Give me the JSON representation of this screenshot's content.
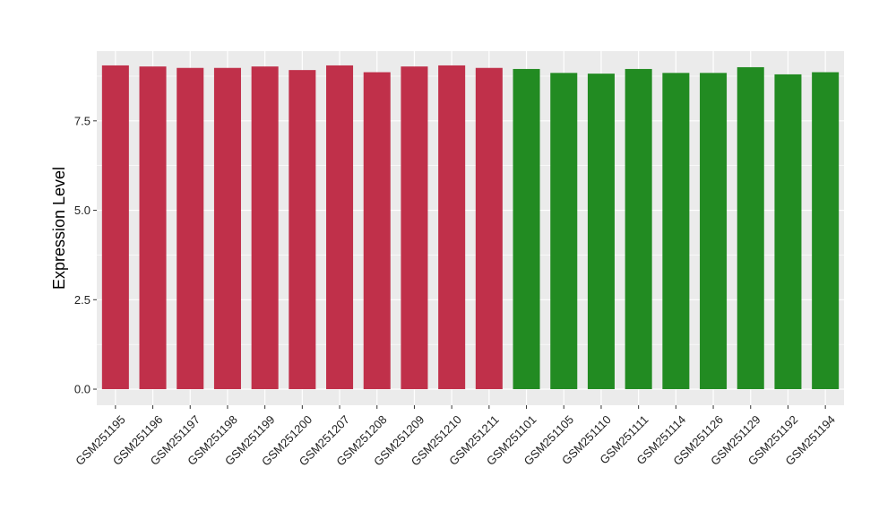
{
  "chart_data": {
    "type": "bar",
    "title": "",
    "xlabel": "",
    "ylabel": "Expression Level",
    "ylim": [
      -0.45,
      9.45
    ],
    "yticks": [
      0.0,
      2.5,
      5.0,
      7.5
    ],
    "ytick_labels": [
      "0.0",
      "2.5",
      "5.0",
      "7.5"
    ],
    "grid": true,
    "legend": "none",
    "panel_background": "#EBEBEB",
    "grid_color": "#FFFFFF",
    "categories": [
      "GSM251195",
      "GSM251196",
      "GSM251197",
      "GSM251198",
      "GSM251199",
      "GSM251200",
      "GSM251207",
      "GSM251208",
      "GSM251209",
      "GSM251210",
      "GSM251211",
      "GSM251101",
      "GSM251105",
      "GSM251110",
      "GSM251111",
      "GSM251114",
      "GSM251126",
      "GSM251129",
      "GSM251192",
      "GSM251194"
    ],
    "values": [
      9.05,
      9.02,
      8.98,
      8.98,
      9.02,
      8.92,
      9.05,
      8.86,
      9.02,
      9.05,
      8.98,
      8.95,
      8.84,
      8.82,
      8.95,
      8.84,
      8.84,
      9.0,
      8.8,
      8.86
    ],
    "bar_colors": [
      "#C0304A",
      "#C0304A",
      "#C0304A",
      "#C0304A",
      "#C0304A",
      "#C0304A",
      "#C0304A",
      "#C0304A",
      "#C0304A",
      "#C0304A",
      "#C0304A",
      "#228B22",
      "#228B22",
      "#228B22",
      "#228B22",
      "#228B22",
      "#228B22",
      "#228B22",
      "#228B22",
      "#228B22"
    ]
  }
}
